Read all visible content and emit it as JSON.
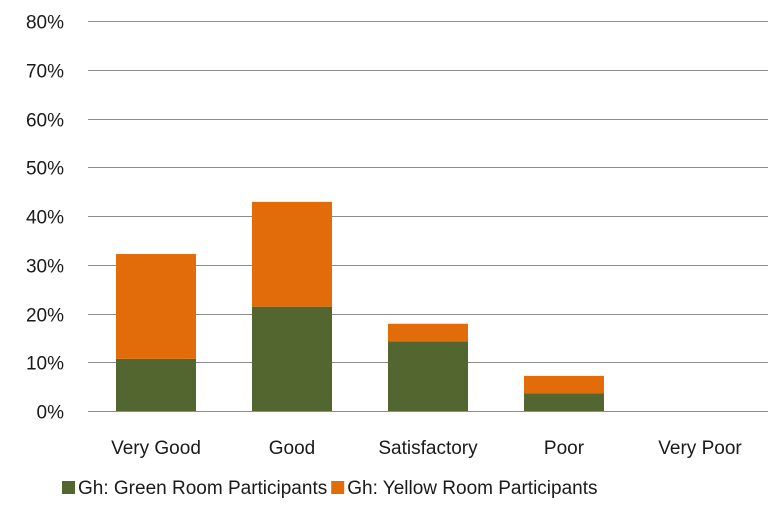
{
  "chart_data": {
    "type": "bar",
    "stacked": true,
    "categories": [
      "Very Good",
      "Good",
      "Satisfactory",
      "Poor",
      "Very Poor"
    ],
    "series": [
      {
        "name": "Gh: Green Room Participants",
        "color": "#536630",
        "values": [
          10.7,
          21.4,
          14.3,
          3.6,
          0
        ]
      },
      {
        "name": "Gh: Yellow Room Participants",
        "color": "#e36c0a",
        "values": [
          21.5,
          21.5,
          3.6,
          3.6,
          0
        ]
      }
    ],
    "ylim": [
      0,
      80
    ],
    "yticks": [
      0,
      10,
      20,
      30,
      40,
      50,
      60,
      70,
      80
    ],
    "ytick_format": "percent",
    "grid": true,
    "legend_position": "bottom",
    "title": "",
    "xlabel": "",
    "ylabel": ""
  }
}
